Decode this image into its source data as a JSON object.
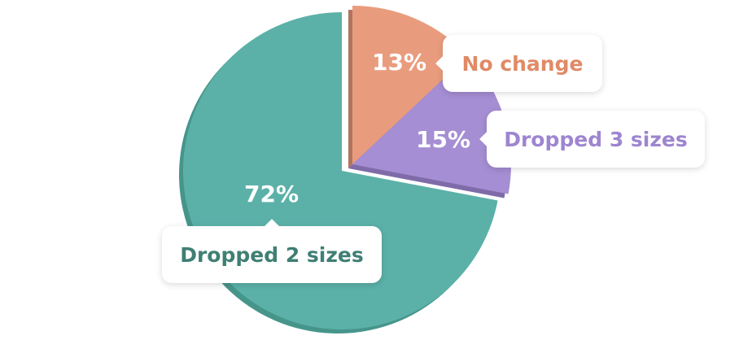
{
  "chart_data": {
    "type": "pie",
    "slices": [
      {
        "label": "No change",
        "value": 13,
        "value_label": "13%",
        "color": "#E99C7D",
        "shade": "#B07460",
        "text_color": "#E08A66",
        "exploded": true
      },
      {
        "label": "Dropped 3 sizes",
        "value": 15,
        "value_label": "15%",
        "color": "#A58ED3",
        "shade": "#7F6BA8",
        "text_color": "#9E85D0",
        "exploded": true
      },
      {
        "label": "Dropped 2 sizes",
        "value": 72,
        "value_label": "72%",
        "color": "#5BB1A8",
        "shade": "#46958B",
        "text_color": "#3F7F74",
        "exploded": false
      }
    ]
  }
}
